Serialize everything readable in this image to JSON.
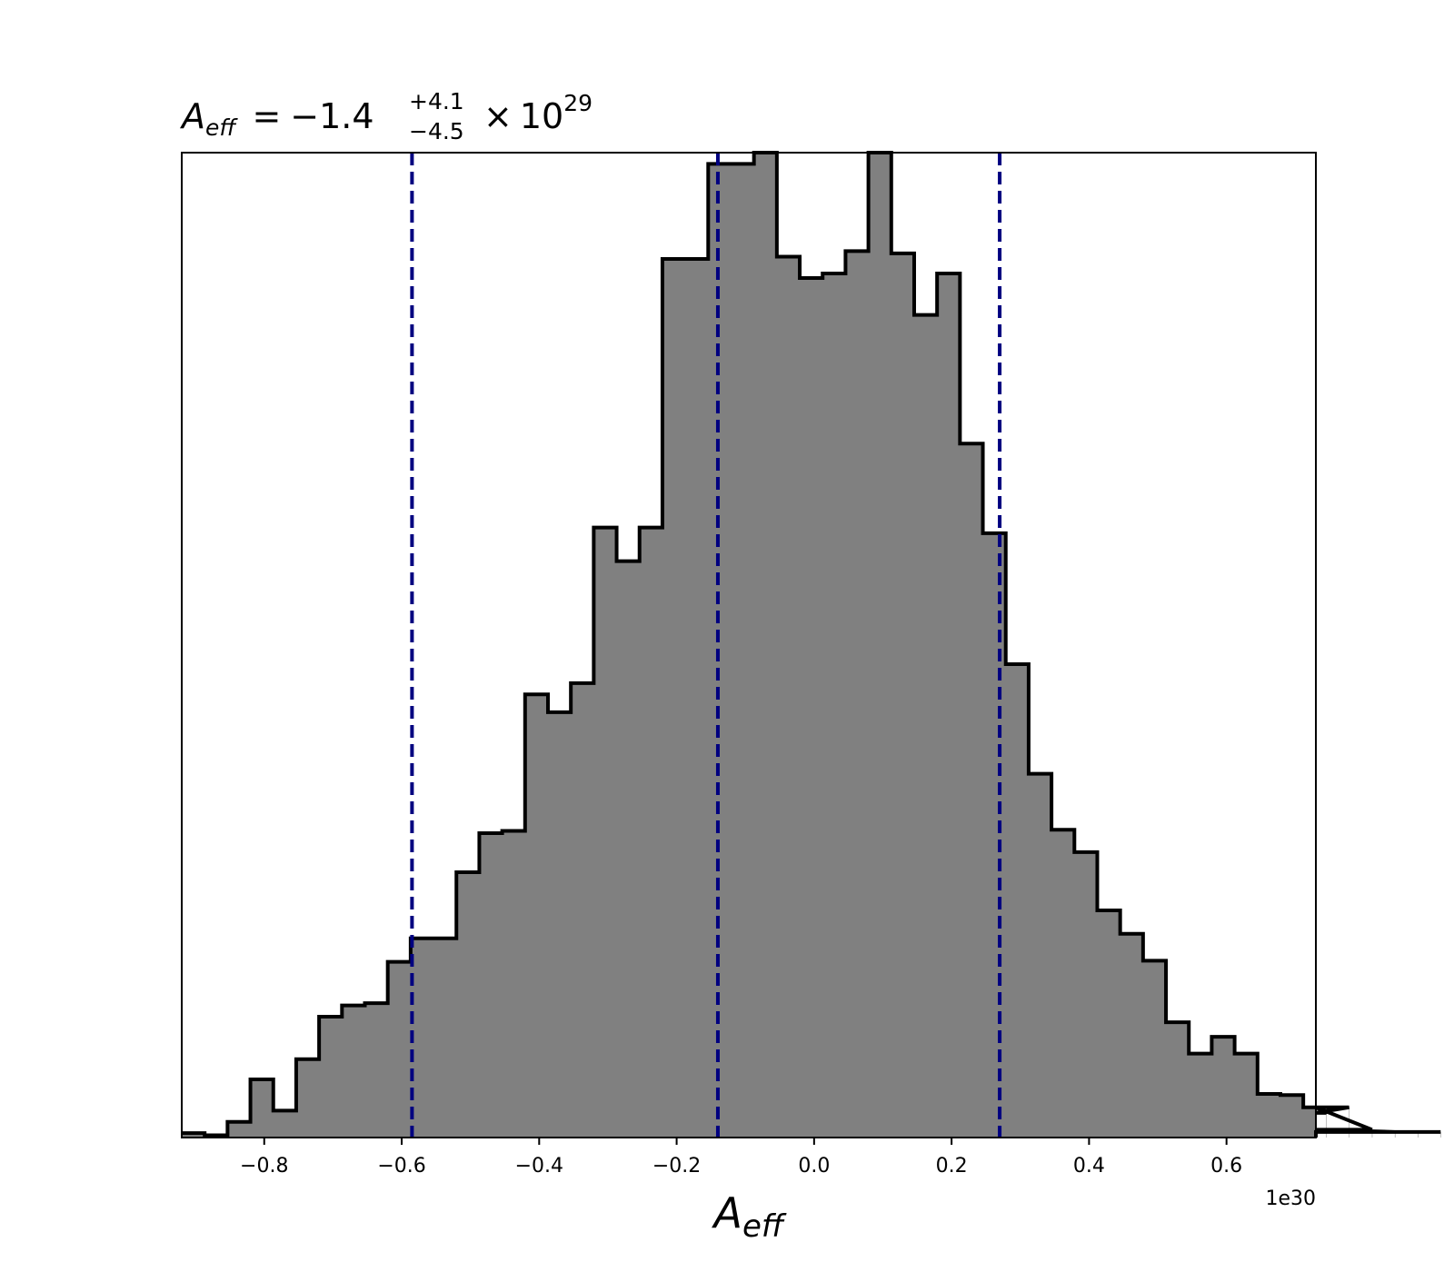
{
  "chart_data": {
    "type": "bar",
    "histogram": true,
    "title": {
      "symbol": "A",
      "symbol_sub": "eff",
      "equals": "=",
      "value": "−1.4",
      "upper": "+4.1",
      "lower": "−4.5",
      "times": "×",
      "base": "10",
      "exponent": "29"
    },
    "xlabel": {
      "symbol": "A",
      "sub": "eff"
    },
    "x_offset_label": "1e30",
    "xlim": [
      -0.92,
      0.73
    ],
    "ylim": [
      0,
      880
    ],
    "x_ticks": [
      -0.8,
      -0.6,
      -0.4,
      -0.2,
      0.0,
      0.2,
      0.4,
      0.6
    ],
    "x_tick_labels": [
      "−0.8",
      "−0.6",
      "−0.4",
      "−0.2",
      "0.0",
      "0.2",
      "0.4",
      "0.6"
    ],
    "bin_start": -0.92,
    "bin_width": 0.0333,
    "counts": [
      4,
      2,
      14,
      52,
      24,
      70,
      108,
      118,
      120,
      157,
      178,
      178,
      237,
      272,
      274,
      396,
      380,
      406,
      545,
      515,
      545,
      785,
      785,
      870,
      870,
      880,
      787,
      768,
      772,
      792,
      880,
      790,
      735,
      772,
      620,
      540,
      423,
      325,
      275,
      255,
      203,
      182,
      158,
      103,
      75,
      90,
      75,
      39,
      38,
      27,
      22,
      27,
      7,
      5,
      5,
      5
    ],
    "credible_interval_lines": [
      -0.585,
      -0.14,
      0.27
    ],
    "fill_color": "#808080",
    "edge_color": "#000000",
    "line_color": "#000080",
    "grid": false,
    "legend": "none"
  }
}
